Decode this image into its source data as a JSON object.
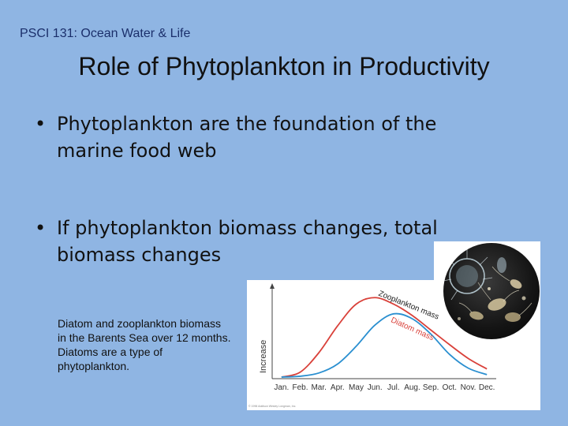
{
  "header": {
    "course": "PSCI 131: Ocean Water & Life"
  },
  "slide": {
    "title": "Role of Phytoplankton in Productivity",
    "bullets": [
      {
        "line1": "Phytoplankton are the foundation of the",
        "line2": "marine food web"
      },
      {
        "line1": "If phytoplankton biomass changes, total",
        "line2": "biomass changes"
      }
    ],
    "caption": [
      "Diatom and zooplankton biomass",
      "in the Barents Sea over 12 months.",
      "Diatoms are a type of",
      "phytoplankton."
    ]
  },
  "chart_data": {
    "type": "line",
    "ylabel": "Increase",
    "categories": [
      "Jan.",
      "Feb.",
      "Mar.",
      "Apr.",
      "May",
      "Jun.",
      "Jul.",
      "Aug.",
      "Sep.",
      "Oct.",
      "Nov.",
      "Dec."
    ],
    "series": [
      {
        "name": "Zooplankton mass",
        "color": "#d9413a",
        "values": [
          0.02,
          0.08,
          0.32,
          0.65,
          0.92,
          1.0,
          0.92,
          0.78,
          0.6,
          0.42,
          0.25,
          0.12
        ]
      },
      {
        "name": "Diatom mass",
        "color": "#2a8fd0",
        "values": [
          0.02,
          0.03,
          0.07,
          0.18,
          0.4,
          0.66,
          0.8,
          0.74,
          0.55,
          0.3,
          0.13,
          0.05
        ]
      }
    ],
    "ylim": [
      0,
      1.1
    ],
    "grid": false,
    "labels_on_lines": true
  },
  "figure": {
    "copyright": "© 1996 Addison Wesley Longman, Inc."
  }
}
